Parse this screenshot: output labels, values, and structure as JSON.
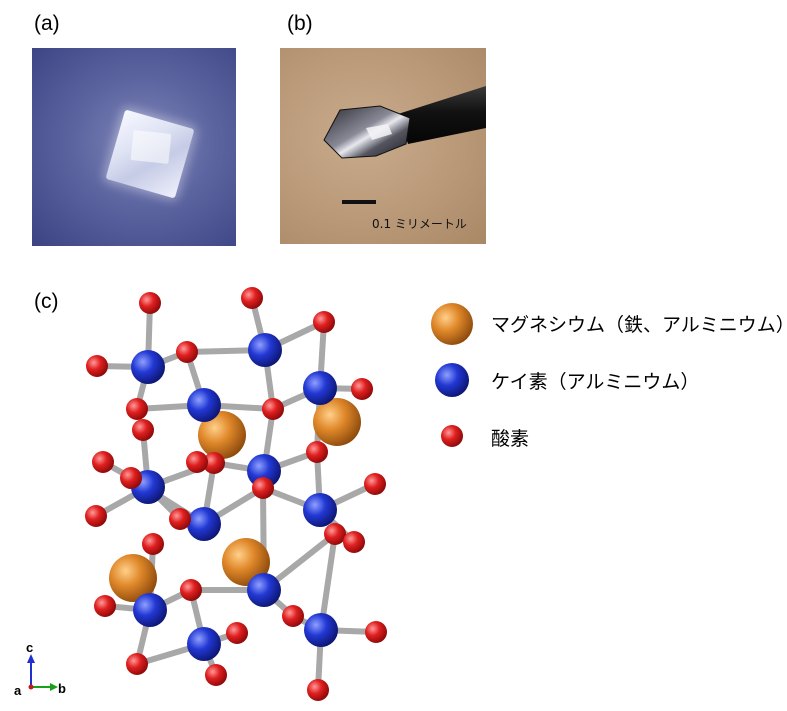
{
  "panels": {
    "a": {
      "label": "(a)"
    },
    "b": {
      "label": "(b)",
      "scale_bar_text": "0.1 ミリメートル"
    },
    "c": {
      "label": "(c)"
    }
  },
  "legend": [
    {
      "label": "マグネシウム（鉄、アルミニウム）",
      "color": "#d9892b"
    },
    {
      "label": "ケイ素（アルミニウム）",
      "color": "#2b3fd0"
    },
    {
      "label": "酸素",
      "color": "#dd2222"
    }
  ],
  "axes": {
    "c": "c",
    "a": "a",
    "b": "b"
  }
}
